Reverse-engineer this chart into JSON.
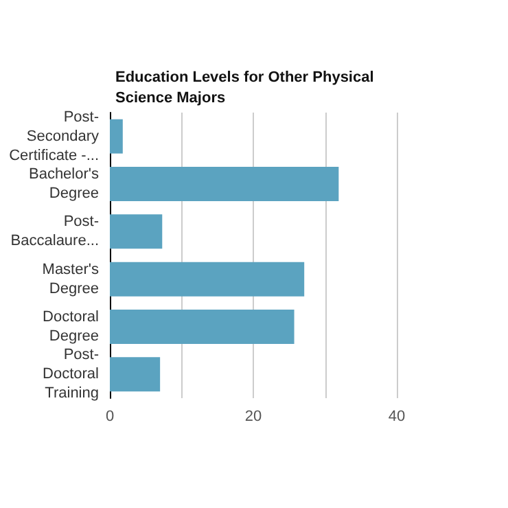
{
  "chart_data": {
    "type": "bar",
    "orientation": "horizontal",
    "title": "Education Levels for Other Physical Science Majors",
    "categories": [
      "Post-Secondary Certificate -...",
      "Bachelor's Degree",
      "Post-Baccalaure...",
      "Master's Degree",
      "Doctoral Degree",
      "Post-Doctoral Training"
    ],
    "values": [
      1.8,
      31.9,
      7.3,
      27.1,
      25.7,
      7.0
    ],
    "color": "#5ba3c0",
    "xlim": [
      0,
      40
    ],
    "xticks": [
      0,
      {
        "value": 10,
        "label": null
      },
      20,
      {
        "value": 30,
        "label": null
      },
      40
    ],
    "grid": "x"
  }
}
